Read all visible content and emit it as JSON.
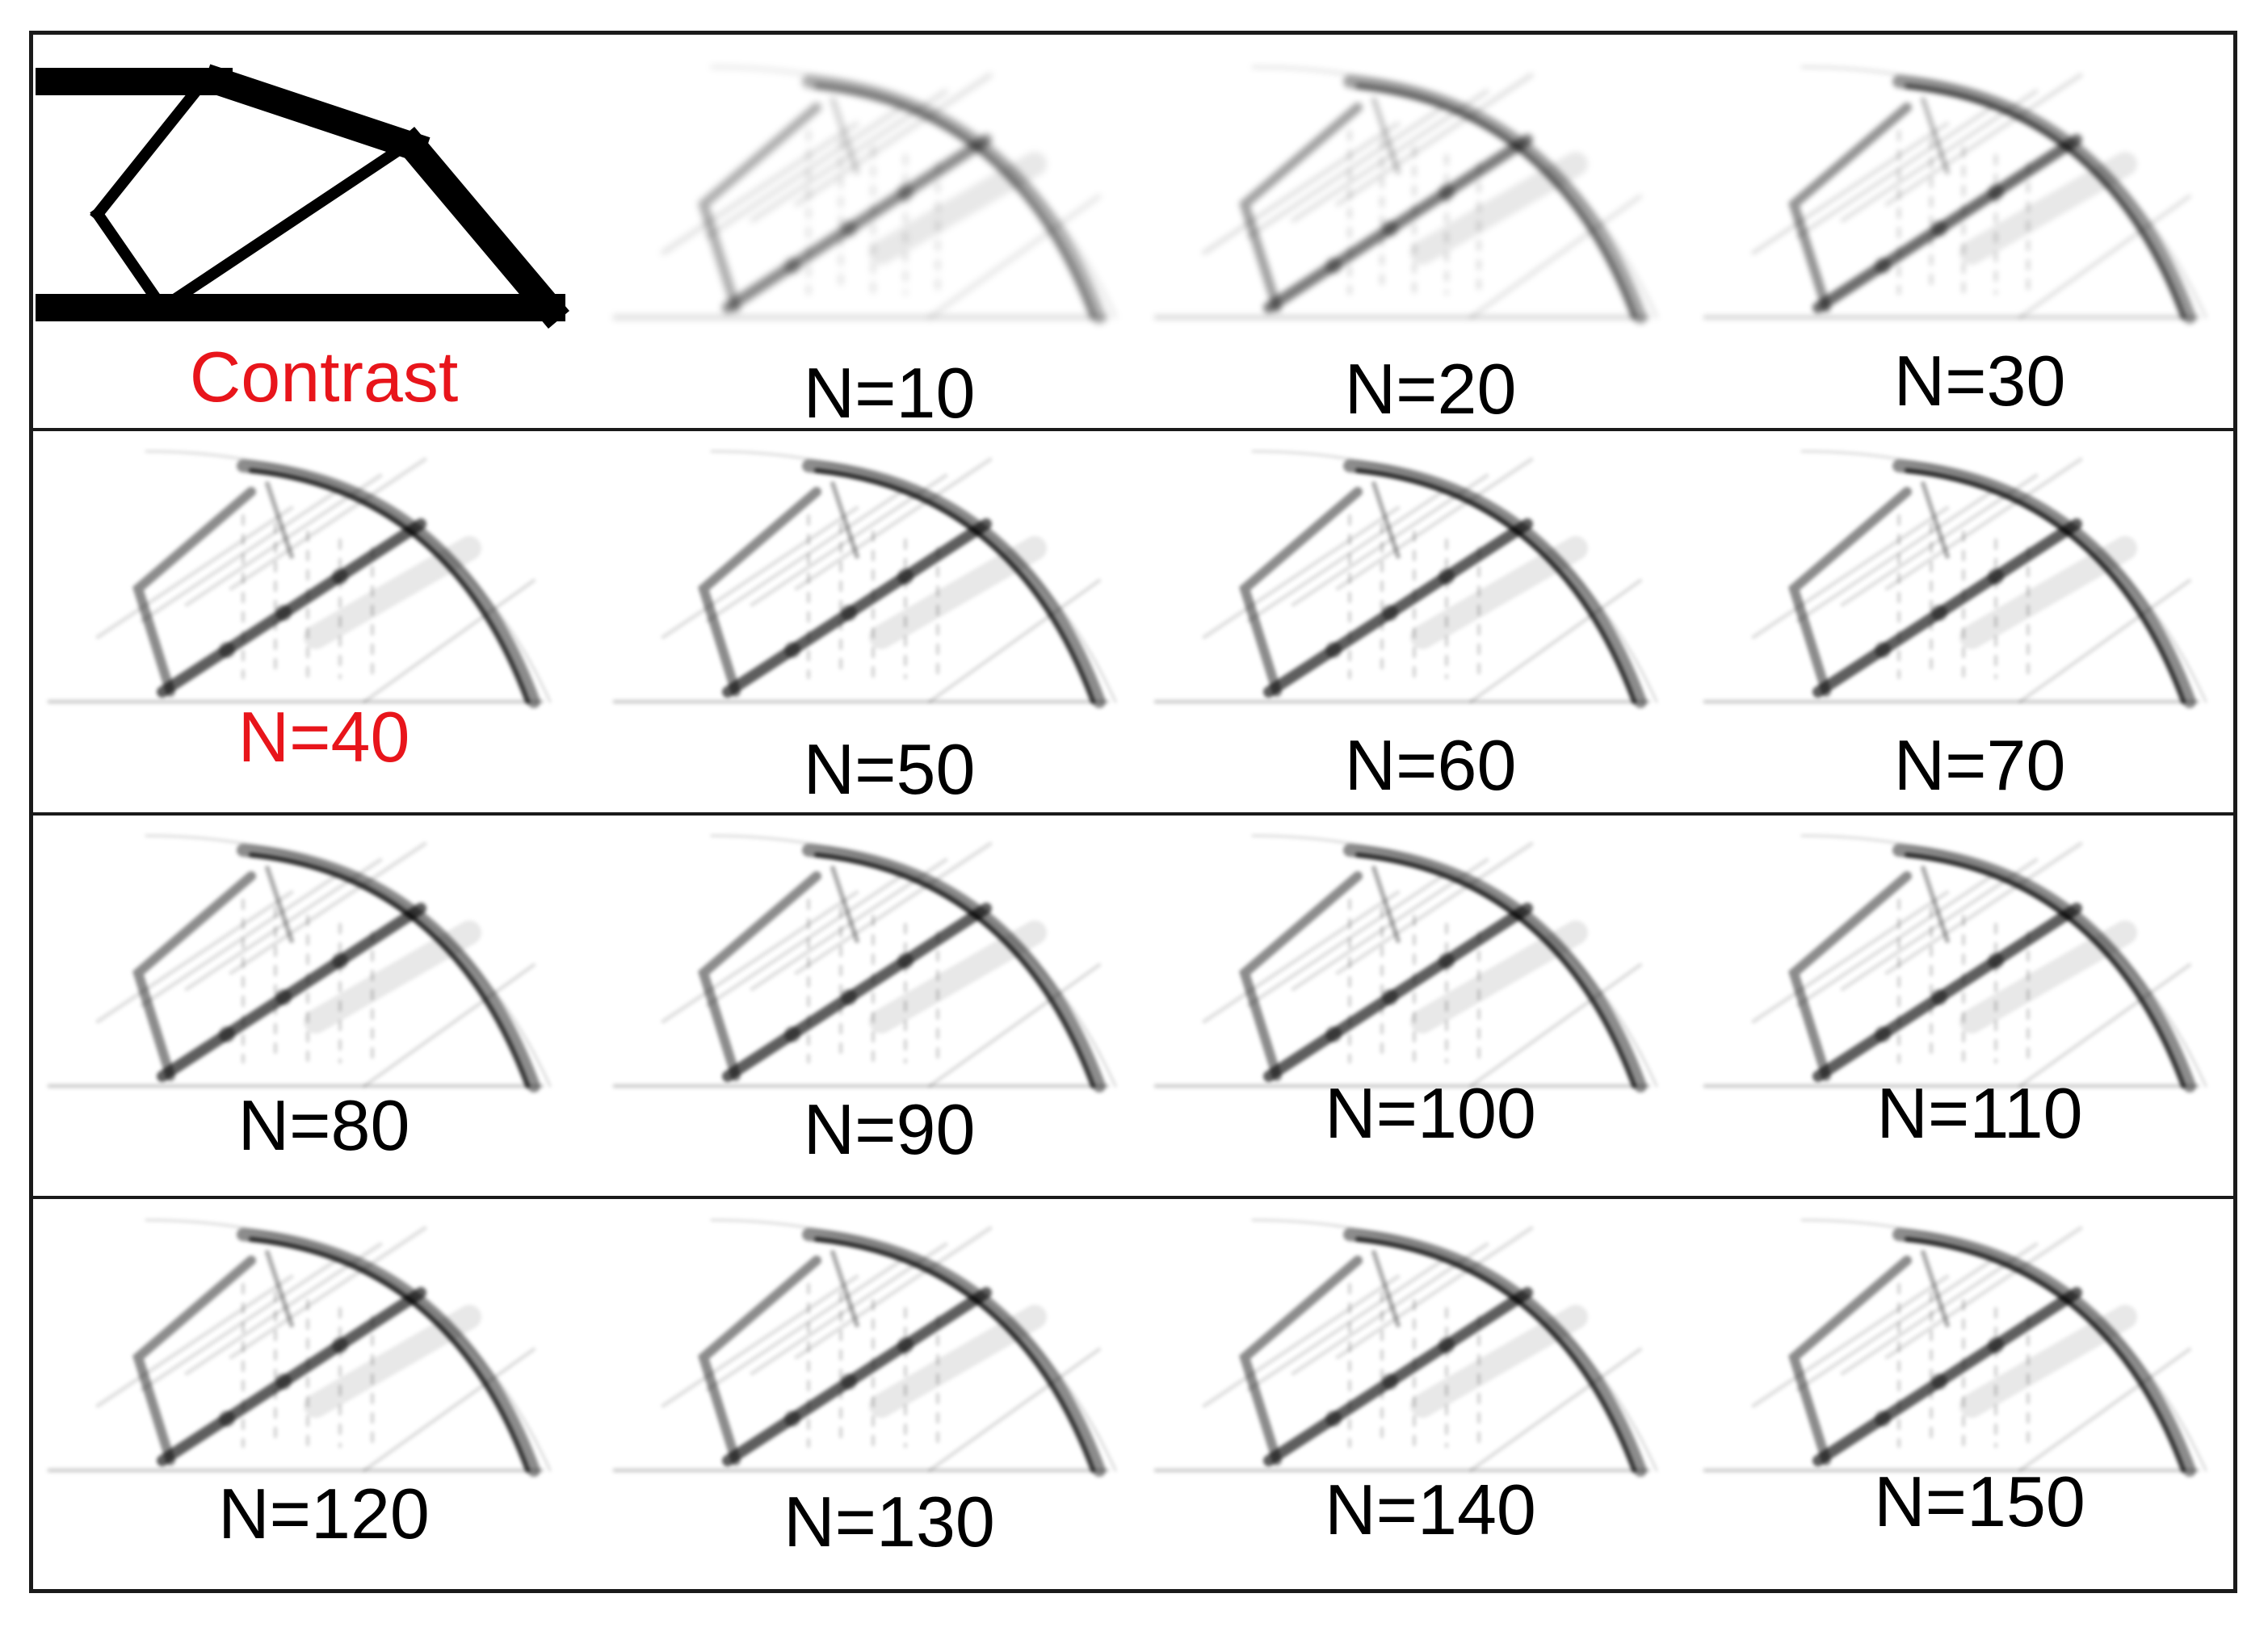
{
  "figure": {
    "colors": {
      "highlight": "#e8151b",
      "text": "#000000",
      "shape": "#000000",
      "border": "#1a1a1a"
    },
    "panels": [
      {
        "label": "Contrast",
        "highlight": true,
        "kind": "reference"
      },
      {
        "label": "N=10",
        "highlight": false,
        "kind": "result"
      },
      {
        "label": "N=20",
        "highlight": false,
        "kind": "result"
      },
      {
        "label": "N=30",
        "highlight": false,
        "kind": "result"
      },
      {
        "label": "N=40",
        "highlight": true,
        "kind": "result"
      },
      {
        "label": "N=50",
        "highlight": false,
        "kind": "result"
      },
      {
        "label": "N=60",
        "highlight": false,
        "kind": "result"
      },
      {
        "label": "N=70",
        "highlight": false,
        "kind": "result"
      },
      {
        "label": "N=80",
        "highlight": false,
        "kind": "result"
      },
      {
        "label": "N=90",
        "highlight": false,
        "kind": "result"
      },
      {
        "label": "N=100",
        "highlight": false,
        "kind": "result"
      },
      {
        "label": "N=110",
        "highlight": false,
        "kind": "result"
      },
      {
        "label": "N=120",
        "highlight": false,
        "kind": "result"
      },
      {
        "label": "N=130",
        "highlight": false,
        "kind": "result"
      },
      {
        "label": "N=140",
        "highlight": false,
        "kind": "result"
      },
      {
        "label": "N=150",
        "highlight": false,
        "kind": "result"
      }
    ]
  }
}
